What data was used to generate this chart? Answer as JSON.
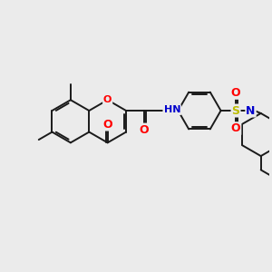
{
  "background_color": "#ebebeb",
  "figsize": [
    3.0,
    3.0
  ],
  "dpi": 100,
  "bond_color": "#1a1a1a",
  "bond_width": 1.4,
  "atom_colors": {
    "O": "#ff0000",
    "N": "#0000cc",
    "S": "#bbbb00",
    "H": "#7a9a9a",
    "C": "#1a1a1a"
  }
}
